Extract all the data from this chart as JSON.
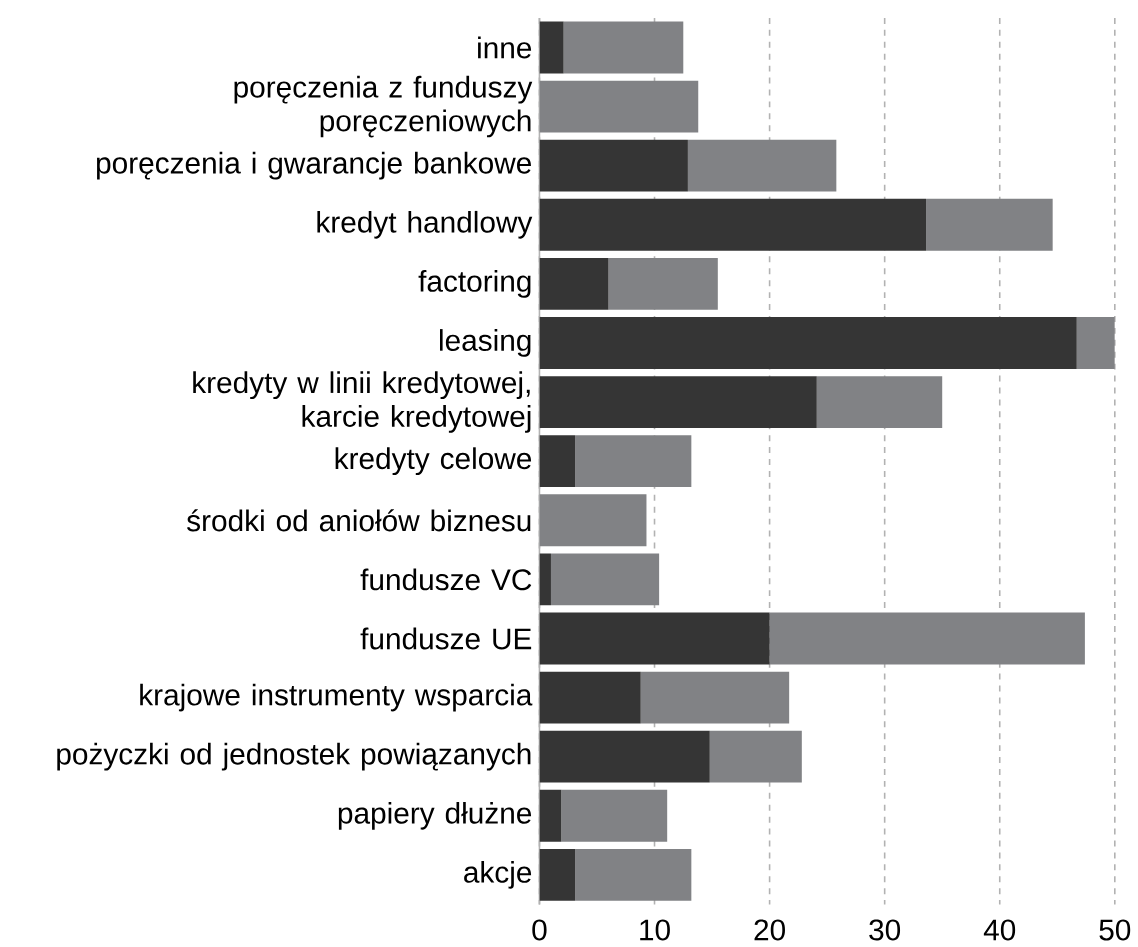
{
  "chart_data": {
    "type": "bar",
    "orientation": "horizontal",
    "stacked": true,
    "categories": [
      "inne",
      "poręczenia z funduszy poręczeniowych",
      "poręczenia i gwarancje bankowe",
      "kredyt handlowy",
      "factoring",
      "leasing",
      "kredyty w linii kredytowej, karcie kredytowej",
      "kredyty celowe",
      "środki od aniołów biznesu",
      "fundusze VC",
      "fundusze UE",
      "krajowe instrumenty wsparcia",
      "pożyczki od jednostek powiązanych",
      "papiery dłużne",
      "akcje"
    ],
    "series": [
      {
        "color": "#353535",
        "values": [
          2.1,
          0,
          12.9,
          33.6,
          6.0,
          46.7,
          24.1,
          3.1,
          0,
          1.0,
          20.0,
          8.8,
          14.8,
          1.9,
          3.1
        ]
      },
      {
        "color": "#818285",
        "values": [
          10.4,
          13.8,
          12.9,
          11.0,
          9.5,
          3.3,
          10.9,
          10.1,
          9.3,
          9.4,
          27.4,
          12.9,
          8.0,
          9.2,
          10.1
        ]
      }
    ],
    "xlim": [
      0,
      50
    ],
    "xticks": [
      0,
      10,
      20,
      30,
      40,
      50
    ],
    "grid": "x"
  }
}
